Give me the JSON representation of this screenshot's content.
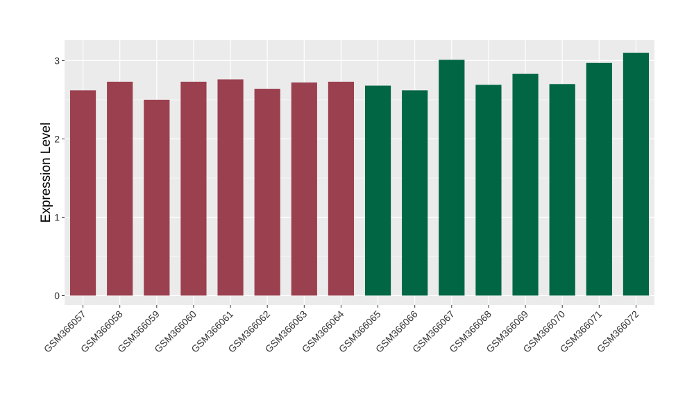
{
  "chart_data": {
    "type": "bar",
    "title": "",
    "xlabel": "",
    "ylabel": "Expression Level",
    "categories": [
      "GSM366057",
      "GSM366058",
      "GSM366059",
      "GSM366060",
      "GSM366061",
      "GSM366062",
      "GSM366063",
      "GSM366064",
      "GSM366065",
      "GSM366066",
      "GSM366067",
      "GSM366068",
      "GSM366069",
      "GSM366070",
      "GSM366071",
      "GSM366072"
    ],
    "values": [
      2.62,
      2.73,
      2.5,
      2.73,
      2.76,
      2.64,
      2.72,
      2.73,
      2.68,
      2.62,
      3.01,
      2.69,
      2.83,
      2.7,
      2.97,
      3.1
    ],
    "groups": [
      "group-1",
      "group-1",
      "group-1",
      "group-1",
      "group-1",
      "group-1",
      "group-1",
      "group-1",
      "group-2",
      "group-2",
      "group-2",
      "group-2",
      "group-2",
      "group-2",
      "group-2",
      "group-2"
    ],
    "group_colors": {
      "group-1": "#9b404f",
      "group-2": "#006644"
    },
    "ylim": [
      -0.12,
      3.26
    ],
    "yticks": [
      0,
      1,
      2,
      3
    ],
    "grid": true,
    "legend": "none",
    "panel_background": "#ebebeb",
    "grid_color": "#ffffff"
  }
}
